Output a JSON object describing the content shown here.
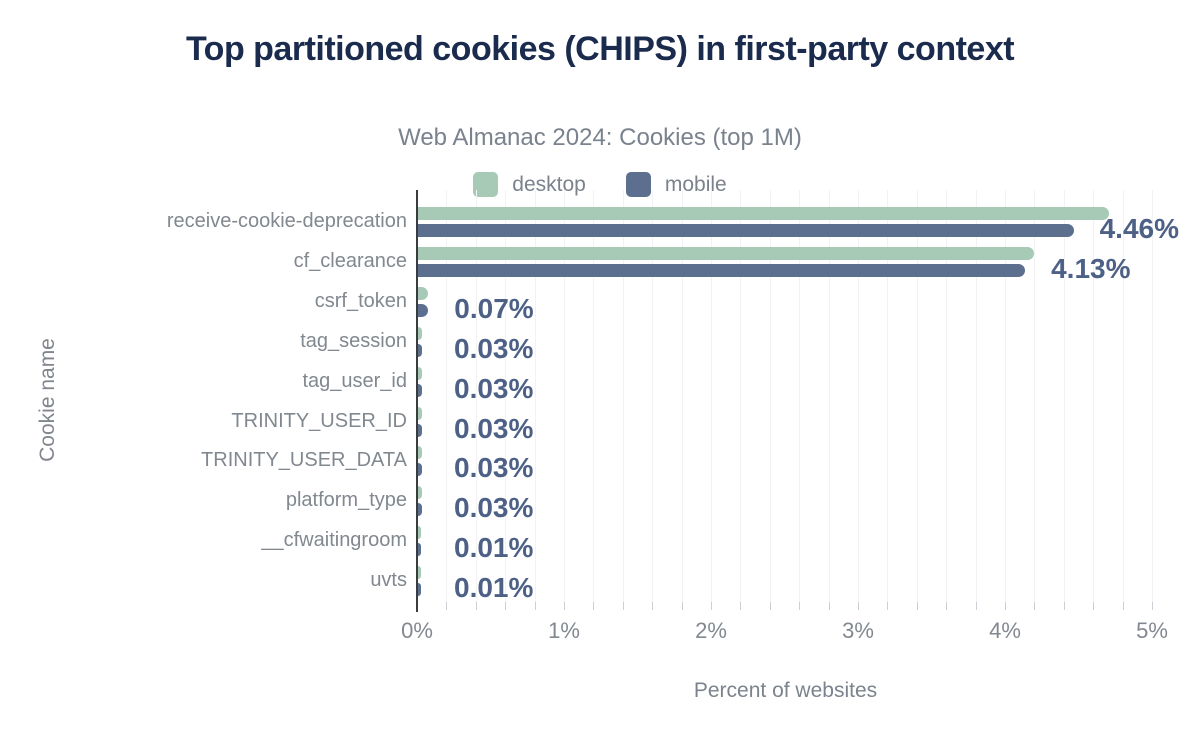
{
  "title": "Top partitioned cookies (CHIPS) in first-party context",
  "subtitle": "Web Almanac 2024: Cookies (top 1M)",
  "chart_data": {
    "type": "bar",
    "orientation": "horizontal",
    "title": "Top partitioned cookies (CHIPS) in first-party context",
    "subtitle": "Web Almanac 2024: Cookies (top 1M)",
    "xlabel": "Percent of websites",
    "ylabel": "Cookie name",
    "xlim": [
      0,
      5
    ],
    "x_tick_labels": [
      "0%",
      "1%",
      "2%",
      "3%",
      "4%",
      "5%"
    ],
    "x_minor_grid_step_pct": 0.2,
    "grid": "minor vertical gridlines on",
    "legend_position": "top-center",
    "categories": [
      "receive-cookie-deprecation",
      "cf_clearance",
      "csrf_token",
      "tag_session",
      "tag_user_id",
      "TRINITY_USER_ID",
      "TRINITY_USER_DATA",
      "platform_type",
      "__cfwaitingroom",
      "uvts"
    ],
    "series": [
      {
        "name": "desktop",
        "color": "#a6cab5",
        "values": [
          4.7,
          4.19,
          0.07,
          0.03,
          0.03,
          0.03,
          0.03,
          0.03,
          0.01,
          0.01
        ]
      },
      {
        "name": "mobile",
        "color": "#5d6f8f",
        "values": [
          4.46,
          4.13,
          0.07,
          0.03,
          0.03,
          0.03,
          0.03,
          0.03,
          0.01,
          0.01
        ]
      }
    ],
    "value_labels": [
      "4.46%",
      "4.13%",
      "0.07%",
      "0.03%",
      "0.03%",
      "0.03%",
      "0.03%",
      "0.03%",
      "0.01%",
      "0.01%"
    ]
  },
  "colors": {
    "title": "#1b2b4d",
    "subtitle": "#7a828e",
    "desktop_bar": "#a6cab5",
    "mobile_bar": "#5d6f8f",
    "value_label": "#4d6187",
    "category_label": "#82888f",
    "tick_label": "#828890",
    "axis_line": "#3a3d40",
    "grid_line": "#f1f2f3",
    "tick_mark": "#ccd0d4",
    "background": "#ffffff"
  }
}
